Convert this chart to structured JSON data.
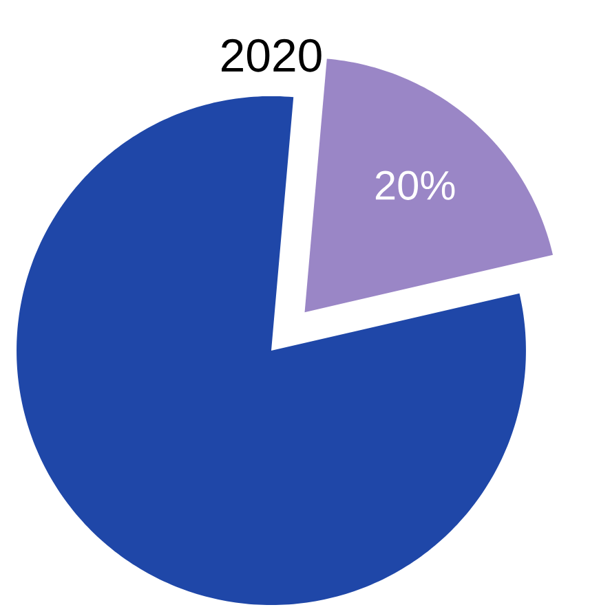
{
  "chart_data": {
    "type": "pie",
    "title": "2020",
    "categories": [
      null,
      null
    ],
    "values": [
      80,
      20
    ],
    "colors": [
      "#1f47a8",
      "#9a86c6"
    ],
    "value_labels": [
      null,
      "20%"
    ]
  }
}
